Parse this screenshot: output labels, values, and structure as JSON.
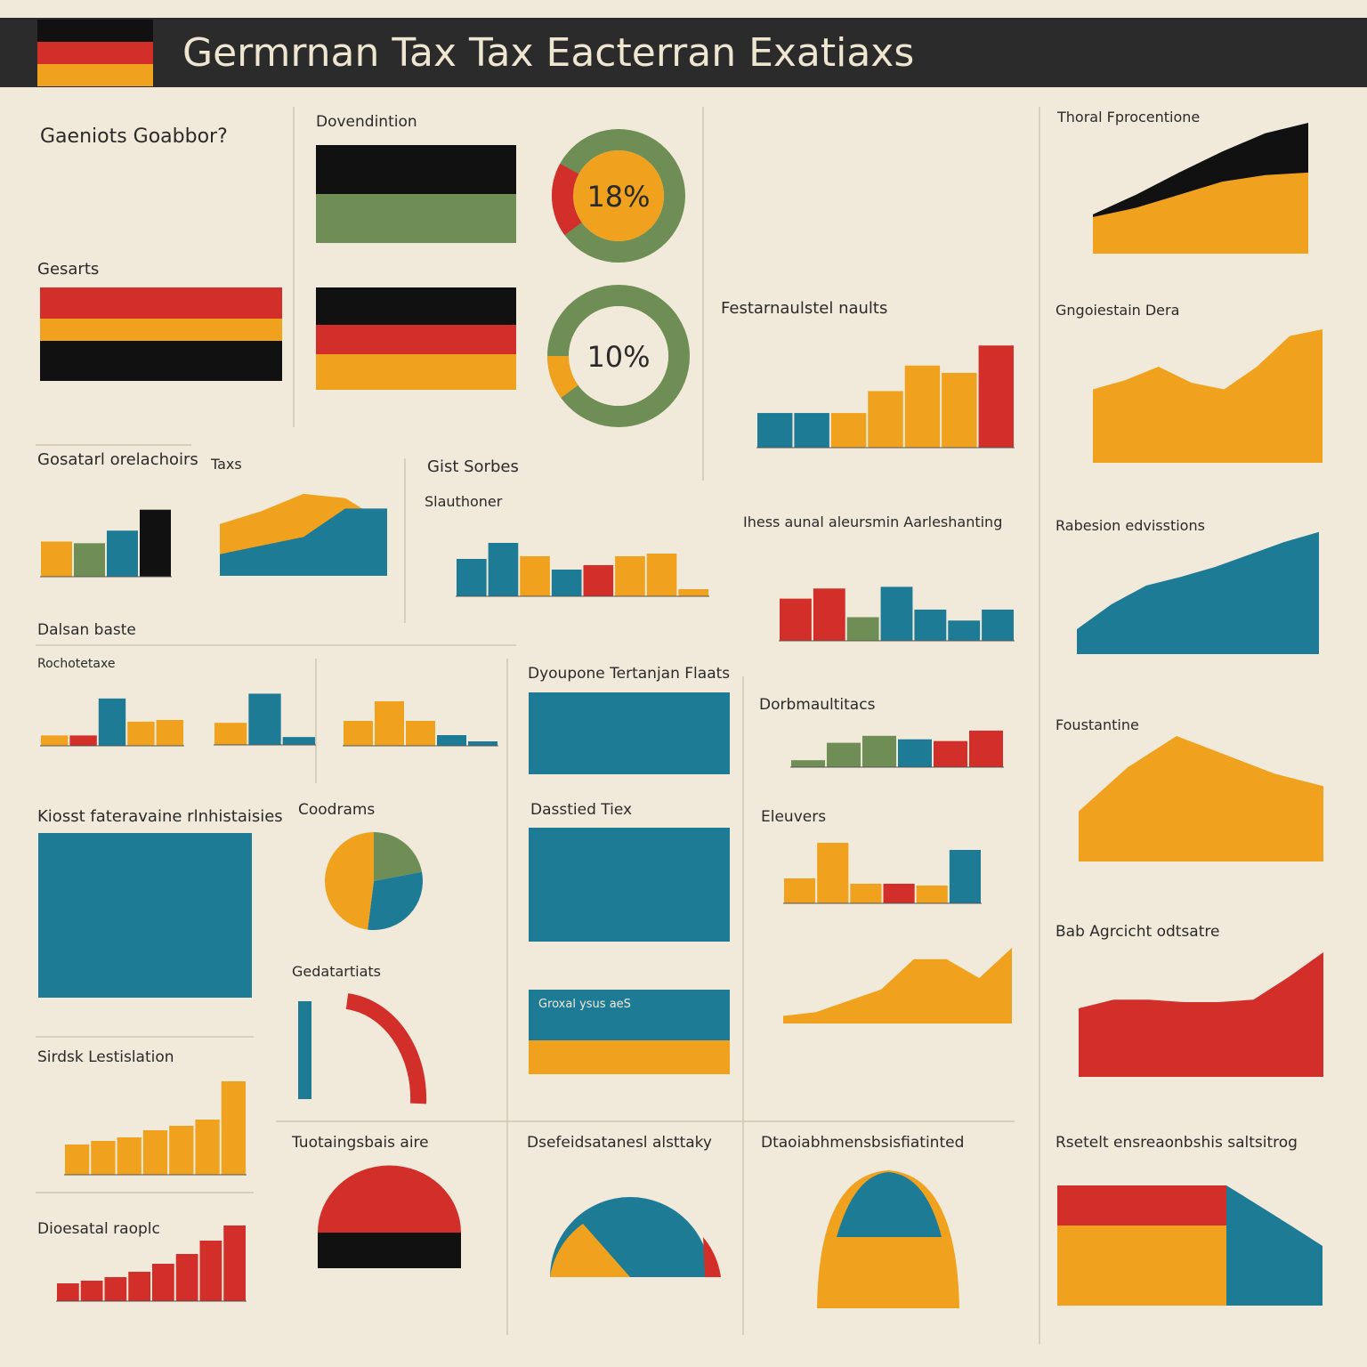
{
  "header": {
    "title": "Germrnan Tax Tax Eacterran Exatiaxs"
  },
  "headings": [
    "Gaeniots Goabbor?",
    "Gesarts",
    "Dovendintion",
    "Festarnaulstel naults",
    "Thoral Fprocentione",
    "Gngoiestain Dera",
    "Gosatarl orelachoirs",
    "Taxs",
    "Gist Sorbes",
    "Slauthoner",
    "Ihess aunal aleursmin Aarleshanting",
    "Rabesion edvisstions",
    "Dalsan baste",
    "Rochotetaxe",
    "Dyoupone Tertanjan Flaats",
    "Dorbmaultitacs",
    "Foustantine",
    "Kiosst fateravaine rlnhistaisies",
    "Coodrams",
    "Dasstied Tiex",
    "Eleuvers",
    "Bab Agrcicht odtsatre",
    "Gedatartiats",
    "Sirdsk Lestislation",
    "Tuotaingsbais aire",
    "Dsefeidsatanesl alsttaky",
    "Dtaoiabhmensbsisfiatinted",
    "Rsetelt ensreaonbshis saltsitrog",
    "Dioesatal raoplc",
    "Groxal ysus aeS"
  ],
  "charts": [
    {
      "type": "donut",
      "value": {
        "value": 18,
        "label": "18%"
      },
      "color": "#d32f2a",
      "ylim": [
        0,
        100
      ]
    },
    {
      "type": "donut",
      "value": {
        "value": 10,
        "label": "10%"
      },
      "color": "#f0a21e",
      "ylim": [
        0,
        100
      ]
    },
    {
      "type": "bar",
      "values": [
        38,
        38,
        38,
        62,
        90,
        82,
        112
      ],
      "colors": [
        "#1e7b96",
        "#1e7b96",
        "#f0a21e",
        "#f0a21e",
        "#f0a21e",
        "#f0a21e",
        "#d32f2a"
      ],
      "ylim": [
        0,
        120
      ]
    },
    {
      "type": "area",
      "series": [
        {
          "color": "#111111",
          "values": [
            30,
            45,
            62,
            78,
            92,
            100
          ]
        },
        {
          "color": "#f0a21e",
          "values": [
            28,
            35,
            45,
            55,
            60,
            62
          ]
        }
      ],
      "ylim": [
        0,
        100
      ]
    },
    {
      "type": "area",
      "series": [
        {
          "color": "#f0a21e",
          "values": [
            55,
            62,
            72,
            60,
            55,
            72,
            95,
            100
          ]
        }
      ],
      "ylim": [
        0,
        100
      ]
    },
    {
      "type": "bar",
      "values": [
        42,
        40,
        55,
        80
      ],
      "colors": [
        "#f0a21e",
        "#6f8e55",
        "#1e7b96",
        "#111111"
      ],
      "ylim": [
        0,
        85
      ]
    },
    {
      "type": "area",
      "series": [
        {
          "color": "#f0a21e",
          "values": [
            60,
            75,
            95,
            90,
            60
          ]
        },
        {
          "color": "#1e7b96",
          "values": [
            25,
            35,
            45,
            78,
            78
          ]
        }
      ],
      "ylim": [
        0,
        100
      ]
    },
    {
      "type": "bar",
      "values": [
        42,
        60,
        45,
        30,
        35,
        45,
        48,
        8
      ],
      "colors": [
        "#1e7b96",
        "#1e7b96",
        "#f0a21e",
        "#1e7b96",
        "#d32f2a",
        "#f0a21e",
        "#f0a21e",
        "#f0a21e"
      ],
      "ylim": [
        0,
        65
      ]
    },
    {
      "type": "bar",
      "values": [
        50,
        62,
        28,
        64,
        37,
        24,
        37
      ],
      "colors": [
        "#d32f2a",
        "#d32f2a",
        "#6f8e55",
        "#1e7b96",
        "#1e7b96",
        "#1e7b96",
        "#1e7b96"
      ],
      "ylim": [
        0,
        95
      ]
    },
    {
      "type": "area",
      "series": [
        {
          "color": "#1e7b96",
          "values": [
            20,
            40,
            55,
            62,
            70,
            80,
            90,
            98
          ]
        }
      ],
      "ylim": [
        0,
        100
      ]
    },
    {
      "type": "bar",
      "values": [
        12,
        12,
        55,
        28,
        30
      ],
      "colors": [
        "#f0a21e",
        "#d32f2a",
        "#1e7b96",
        "#f0a21e",
        "#f0a21e"
      ],
      "ylim": [
        0,
        60
      ]
    },
    {
      "type": "bar",
      "values": [
        28,
        65,
        10
      ],
      "colors": [
        "#f0a21e",
        "#1e7b96",
        "#1e7b96"
      ],
      "ylim": [
        0,
        70
      ]
    },
    {
      "type": "bar",
      "values": [
        28,
        50,
        28,
        12,
        5
      ],
      "colors": [
        "#f0a21e",
        "#f0a21e",
        "#f0a21e",
        "#1e7b96",
        "#1e7b96"
      ],
      "ylim": [
        0,
        55
      ]
    },
    {
      "type": "bar",
      "values": [
        8,
        28,
        36,
        32,
        30,
        42
      ],
      "colors": [
        "#6f8e55",
        "#6f8e55",
        "#6f8e55",
        "#1e7b96",
        "#d32f2a",
        "#d32f2a"
      ],
      "ylim": [
        0,
        45
      ]
    },
    {
      "type": "area",
      "series": [
        {
          "color": "#f0a21e",
          "values": [
            40,
            75,
            100,
            85,
            70,
            60
          ]
        }
      ],
      "ylim": [
        0,
        100
      ]
    },
    {
      "type": "pie",
      "values": [
        22,
        30,
        48
      ],
      "colors": [
        "#6f8e55",
        "#1e7b96",
        "#f0a21e"
      ]
    },
    {
      "type": "bar",
      "values": [
        28,
        68,
        22,
        22,
        20,
        60
      ],
      "colors": [
        "#f0a21e",
        "#f0a21e",
        "#f0a21e",
        "#d32f2a",
        "#f0a21e",
        "#1e7b96"
      ],
      "ylim": [
        0,
        70
      ]
    },
    {
      "type": "area",
      "series": [
        {
          "color": "#d32f2a",
          "values": [
            55,
            62,
            62,
            60,
            60,
            62,
            80,
            100
          ]
        }
      ],
      "ylim": [
        0,
        100
      ]
    },
    {
      "type": "area",
      "series": [
        {
          "color": "#f0a21e",
          "values": [
            10,
            15,
            30,
            45,
            85,
            85,
            60,
            100
          ]
        }
      ],
      "ylim": [
        0,
        100
      ]
    },
    {
      "type": "bar",
      "values": [
        34,
        38,
        42,
        50,
        55,
        62,
        105
      ],
      "colors": [
        "#f0a21e",
        "#f0a21e",
        "#f0a21e",
        "#f0a21e",
        "#f0a21e",
        "#f0a21e",
        "#f0a21e"
      ],
      "ylim": [
        0,
        105
      ]
    },
    {
      "type": "bar",
      "values": [
        20,
        23,
        27,
        33,
        42,
        53,
        68,
        85
      ],
      "colors": [
        "#d32f2a",
        "#d32f2a",
        "#d32f2a",
        "#d32f2a",
        "#d32f2a",
        "#d32f2a",
        "#d32f2a",
        "#d32f2a"
      ],
      "ylim": [
        0,
        85
      ]
    }
  ]
}
